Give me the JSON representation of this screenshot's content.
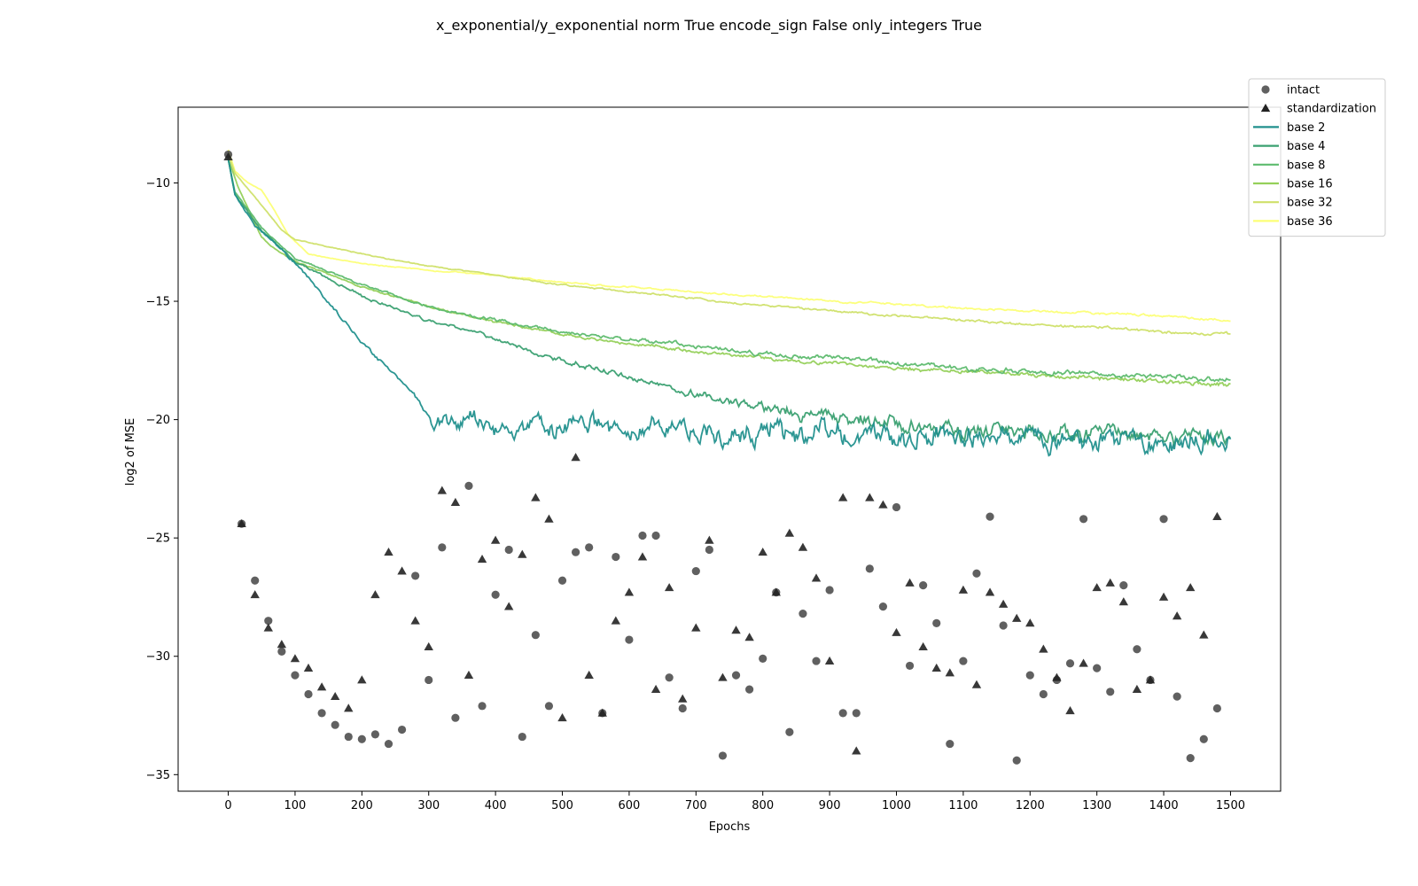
{
  "chart_data": {
    "type": "line",
    "title": "x_exponential/y_exponential norm True encode_sign False only_integers True",
    "xlabel": "Epochs",
    "ylabel": "log2 of MSE",
    "xlim": [
      -75,
      1575
    ],
    "ylim": [
      -35.7,
      -6.8
    ],
    "xticks": [
      0,
      100,
      200,
      300,
      400,
      500,
      600,
      700,
      800,
      900,
      1000,
      1100,
      1200,
      1300,
      1400,
      1500
    ],
    "yticks": [
      -35,
      -30,
      -25,
      -20,
      -15,
      -10
    ],
    "grid": false,
    "legend_position": "top-right (outside)",
    "series": [
      {
        "name": "base 2",
        "color": "#21908d",
        "anchors": [
          [
            0,
            -9.0
          ],
          [
            10,
            -10.5
          ],
          [
            40,
            -11.8
          ],
          [
            80,
            -12.8
          ],
          [
            120,
            -14.0
          ],
          [
            160,
            -15.4
          ],
          [
            200,
            -16.7
          ],
          [
            250,
            -18.1
          ],
          [
            290,
            -19.3
          ],
          [
            310,
            -20.3
          ],
          [
            340,
            -20.0
          ],
          [
            400,
            -20.3
          ],
          [
            500,
            -20.4
          ],
          [
            700,
            -20.6
          ],
          [
            900,
            -20.7
          ],
          [
            1100,
            -20.8
          ],
          [
            1300,
            -20.9
          ],
          [
            1500,
            -20.9
          ]
        ],
        "noise": [
          [
            0,
            0.05
          ],
          [
            280,
            0.15
          ],
          [
            320,
            0.6
          ],
          [
            600,
            0.75
          ],
          [
            1000,
            0.75
          ],
          [
            1500,
            0.65
          ]
        ]
      },
      {
        "name": "base 4",
        "color": "#3aa071",
        "anchors": [
          [
            0,
            -9.0
          ],
          [
            10,
            -10.5
          ],
          [
            50,
            -12.0
          ],
          [
            100,
            -13.3
          ],
          [
            200,
            -14.8
          ],
          [
            300,
            -15.8
          ],
          [
            400,
            -16.6
          ],
          [
            500,
            -17.5
          ],
          [
            600,
            -18.2
          ],
          [
            700,
            -18.9
          ],
          [
            800,
            -19.5
          ],
          [
            900,
            -19.9
          ],
          [
            1000,
            -20.2
          ],
          [
            1100,
            -20.4
          ],
          [
            1200,
            -20.6
          ],
          [
            1350,
            -20.7
          ],
          [
            1500,
            -20.7
          ]
        ],
        "noise": [
          [
            0,
            0.05
          ],
          [
            400,
            0.12
          ],
          [
            700,
            0.25
          ],
          [
            850,
            0.4
          ],
          [
            1000,
            0.55
          ],
          [
            1500,
            0.55
          ]
        ]
      },
      {
        "name": "base 8",
        "color": "#5dbb6e",
        "anchors": [
          [
            0,
            -9.0
          ],
          [
            10,
            -10.4
          ],
          [
            50,
            -11.9
          ],
          [
            100,
            -13.2
          ],
          [
            200,
            -14.3
          ],
          [
            300,
            -15.2
          ],
          [
            400,
            -15.8
          ],
          [
            500,
            -16.3
          ],
          [
            600,
            -16.6
          ],
          [
            700,
            -16.9
          ],
          [
            800,
            -17.2
          ],
          [
            900,
            -17.4
          ],
          [
            1000,
            -17.6
          ],
          [
            1100,
            -17.8
          ],
          [
            1200,
            -18.0
          ],
          [
            1300,
            -18.1
          ],
          [
            1400,
            -18.2
          ],
          [
            1500,
            -18.3
          ]
        ],
        "noise": [
          [
            0,
            0.03
          ],
          [
            300,
            0.08
          ],
          [
            800,
            0.15
          ],
          [
            1500,
            0.18
          ]
        ]
      },
      {
        "name": "base 16",
        "color": "#95d05a",
        "anchors": [
          [
            0,
            -9.0
          ],
          [
            15,
            -10.2
          ],
          [
            35,
            -11.4
          ],
          [
            50,
            -12.3
          ],
          [
            70,
            -12.8
          ],
          [
            100,
            -13.3
          ],
          [
            200,
            -14.4
          ],
          [
            300,
            -15.2
          ],
          [
            400,
            -15.9
          ],
          [
            500,
            -16.4
          ],
          [
            600,
            -16.8
          ],
          [
            700,
            -17.1
          ],
          [
            800,
            -17.4
          ],
          [
            900,
            -17.6
          ],
          [
            1000,
            -17.8
          ],
          [
            1200,
            -18.1
          ],
          [
            1400,
            -18.4
          ],
          [
            1500,
            -18.5
          ]
        ],
        "noise": [
          [
            0,
            0.03
          ],
          [
            300,
            0.07
          ],
          [
            800,
            0.12
          ],
          [
            1500,
            0.16
          ]
        ]
      },
      {
        "name": "base 32",
        "color": "#cfe06a",
        "anchors": [
          [
            0,
            -8.8
          ],
          [
            10,
            -9.6
          ],
          [
            40,
            -10.6
          ],
          [
            60,
            -11.3
          ],
          [
            80,
            -12.0
          ],
          [
            100,
            -12.4
          ],
          [
            200,
            -13.0
          ],
          [
            300,
            -13.5
          ],
          [
            400,
            -13.9
          ],
          [
            500,
            -14.3
          ],
          [
            600,
            -14.6
          ],
          [
            700,
            -14.9
          ],
          [
            800,
            -15.2
          ],
          [
            900,
            -15.4
          ],
          [
            1000,
            -15.6
          ],
          [
            1100,
            -15.8
          ],
          [
            1200,
            -16.0
          ],
          [
            1300,
            -16.1
          ],
          [
            1400,
            -16.3
          ],
          [
            1500,
            -16.4
          ]
        ],
        "noise": [
          [
            0,
            0.02
          ],
          [
            500,
            0.05
          ],
          [
            1500,
            0.1
          ]
        ]
      },
      {
        "name": "base 36",
        "color": "#fcff76",
        "anchors": [
          [
            0,
            -8.6
          ],
          [
            10,
            -9.5
          ],
          [
            30,
            -10.0
          ],
          [
            50,
            -10.3
          ],
          [
            70,
            -11.2
          ],
          [
            90,
            -12.2
          ],
          [
            120,
            -13.0
          ],
          [
            200,
            -13.4
          ],
          [
            300,
            -13.7
          ],
          [
            400,
            -13.9
          ],
          [
            500,
            -14.2
          ],
          [
            600,
            -14.4
          ],
          [
            700,
            -14.6
          ],
          [
            800,
            -14.8
          ],
          [
            900,
            -15.0
          ],
          [
            1000,
            -15.1
          ],
          [
            1100,
            -15.3
          ],
          [
            1200,
            -15.4
          ],
          [
            1300,
            -15.5
          ],
          [
            1400,
            -15.6
          ],
          [
            1500,
            -15.8
          ]
        ],
        "noise": [
          [
            0,
            0.02
          ],
          [
            500,
            0.05
          ],
          [
            1500,
            0.08
          ]
        ]
      }
    ],
    "scatter": [
      {
        "name": "intact",
        "marker": "circle",
        "color": "#444444",
        "points": [
          [
            0,
            -8.8
          ],
          [
            20,
            -24.4
          ],
          [
            40,
            -26.8
          ],
          [
            60,
            -28.5
          ],
          [
            80,
            -29.8
          ],
          [
            100,
            -30.8
          ],
          [
            120,
            -31.6
          ],
          [
            140,
            -32.4
          ],
          [
            160,
            -32.9
          ],
          [
            180,
            -33.4
          ],
          [
            200,
            -33.5
          ],
          [
            220,
            -33.3
          ],
          [
            240,
            -33.7
          ],
          [
            260,
            -33.1
          ],
          [
            280,
            -26.6
          ],
          [
            300,
            -31.0
          ],
          [
            320,
            -25.4
          ],
          [
            340,
            -32.6
          ],
          [
            360,
            -22.8
          ],
          [
            380,
            -32.1
          ],
          [
            400,
            -27.4
          ],
          [
            420,
            -25.5
          ],
          [
            440,
            -33.4
          ],
          [
            460,
            -29.1
          ],
          [
            480,
            -32.1
          ],
          [
            500,
            -26.8
          ],
          [
            520,
            -25.6
          ],
          [
            540,
            -25.4
          ],
          [
            560,
            -32.4
          ],
          [
            580,
            -25.8
          ],
          [
            600,
            -29.3
          ],
          [
            620,
            -24.9
          ],
          [
            640,
            -24.9
          ],
          [
            660,
            -30.9
          ],
          [
            680,
            -32.2
          ],
          [
            700,
            -26.4
          ],
          [
            720,
            -25.5
          ],
          [
            740,
            -34.2
          ],
          [
            760,
            -30.8
          ],
          [
            780,
            -31.4
          ],
          [
            800,
            -30.1
          ],
          [
            820,
            -27.3
          ],
          [
            840,
            -33.2
          ],
          [
            860,
            -28.2
          ],
          [
            880,
            -30.2
          ],
          [
            900,
            -27.2
          ],
          [
            920,
            -32.4
          ],
          [
            940,
            -32.4
          ],
          [
            960,
            -26.3
          ],
          [
            980,
            -27.9
          ],
          [
            1000,
            -23.7
          ],
          [
            1020,
            -30.4
          ],
          [
            1040,
            -27.0
          ],
          [
            1060,
            -28.6
          ],
          [
            1080,
            -33.7
          ],
          [
            1100,
            -30.2
          ],
          [
            1120,
            -26.5
          ],
          [
            1140,
            -24.1
          ],
          [
            1160,
            -28.7
          ],
          [
            1180,
            -34.4
          ],
          [
            1200,
            -30.8
          ],
          [
            1220,
            -31.6
          ],
          [
            1240,
            -31.0
          ],
          [
            1260,
            -30.3
          ],
          [
            1280,
            -24.2
          ],
          [
            1300,
            -30.5
          ],
          [
            1320,
            -31.5
          ],
          [
            1340,
            -27.0
          ],
          [
            1360,
            -29.7
          ],
          [
            1380,
            -31.0
          ],
          [
            1400,
            -24.2
          ],
          [
            1420,
            -31.7
          ],
          [
            1440,
            -34.3
          ],
          [
            1460,
            -33.5
          ],
          [
            1480,
            -32.2
          ]
        ]
      },
      {
        "name": "standardization",
        "marker": "triangle",
        "color": "#222222",
        "points": [
          [
            0,
            -8.9
          ],
          [
            20,
            -24.4
          ],
          [
            40,
            -27.4
          ],
          [
            60,
            -28.8
          ],
          [
            80,
            -29.5
          ],
          [
            100,
            -30.1
          ],
          [
            120,
            -30.5
          ],
          [
            140,
            -31.3
          ],
          [
            160,
            -31.7
          ],
          [
            180,
            -32.2
          ],
          [
            200,
            -31.0
          ],
          [
            220,
            -27.4
          ],
          [
            240,
            -25.6
          ],
          [
            260,
            -26.4
          ],
          [
            280,
            -28.5
          ],
          [
            300,
            -29.6
          ],
          [
            320,
            -23.0
          ],
          [
            340,
            -23.5
          ],
          [
            360,
            -30.8
          ],
          [
            380,
            -25.9
          ],
          [
            400,
            -25.1
          ],
          [
            420,
            -27.9
          ],
          [
            440,
            -25.7
          ],
          [
            460,
            -23.3
          ],
          [
            480,
            -24.2
          ],
          [
            500,
            -32.6
          ],
          [
            520,
            -21.6
          ],
          [
            540,
            -30.8
          ],
          [
            560,
            -32.4
          ],
          [
            580,
            -28.5
          ],
          [
            600,
            -27.3
          ],
          [
            620,
            -25.8
          ],
          [
            640,
            -31.4
          ],
          [
            660,
            -27.1
          ],
          [
            680,
            -31.8
          ],
          [
            700,
            -28.8
          ],
          [
            720,
            -25.1
          ],
          [
            740,
            -30.9
          ],
          [
            760,
            -28.9
          ],
          [
            780,
            -29.2
          ],
          [
            800,
            -25.6
          ],
          [
            820,
            -27.3
          ],
          [
            840,
            -24.8
          ],
          [
            860,
            -25.4
          ],
          [
            880,
            -26.7
          ],
          [
            900,
            -30.2
          ],
          [
            920,
            -23.3
          ],
          [
            940,
            -34.0
          ],
          [
            960,
            -23.3
          ],
          [
            980,
            -23.6
          ],
          [
            1000,
            -29.0
          ],
          [
            1020,
            -26.9
          ],
          [
            1040,
            -29.6
          ],
          [
            1060,
            -30.5
          ],
          [
            1080,
            -30.7
          ],
          [
            1100,
            -27.2
          ],
          [
            1120,
            -31.2
          ],
          [
            1140,
            -27.3
          ],
          [
            1160,
            -27.8
          ],
          [
            1180,
            -28.4
          ],
          [
            1200,
            -28.6
          ],
          [
            1220,
            -29.7
          ],
          [
            1240,
            -30.9
          ],
          [
            1260,
            -32.3
          ],
          [
            1280,
            -30.3
          ],
          [
            1300,
            -27.1
          ],
          [
            1320,
            -26.9
          ],
          [
            1340,
            -27.7
          ],
          [
            1360,
            -31.4
          ],
          [
            1380,
            -31.0
          ],
          [
            1400,
            -27.5
          ],
          [
            1420,
            -28.3
          ],
          [
            1440,
            -27.1
          ],
          [
            1460,
            -29.1
          ],
          [
            1480,
            -24.1
          ]
        ]
      }
    ]
  }
}
